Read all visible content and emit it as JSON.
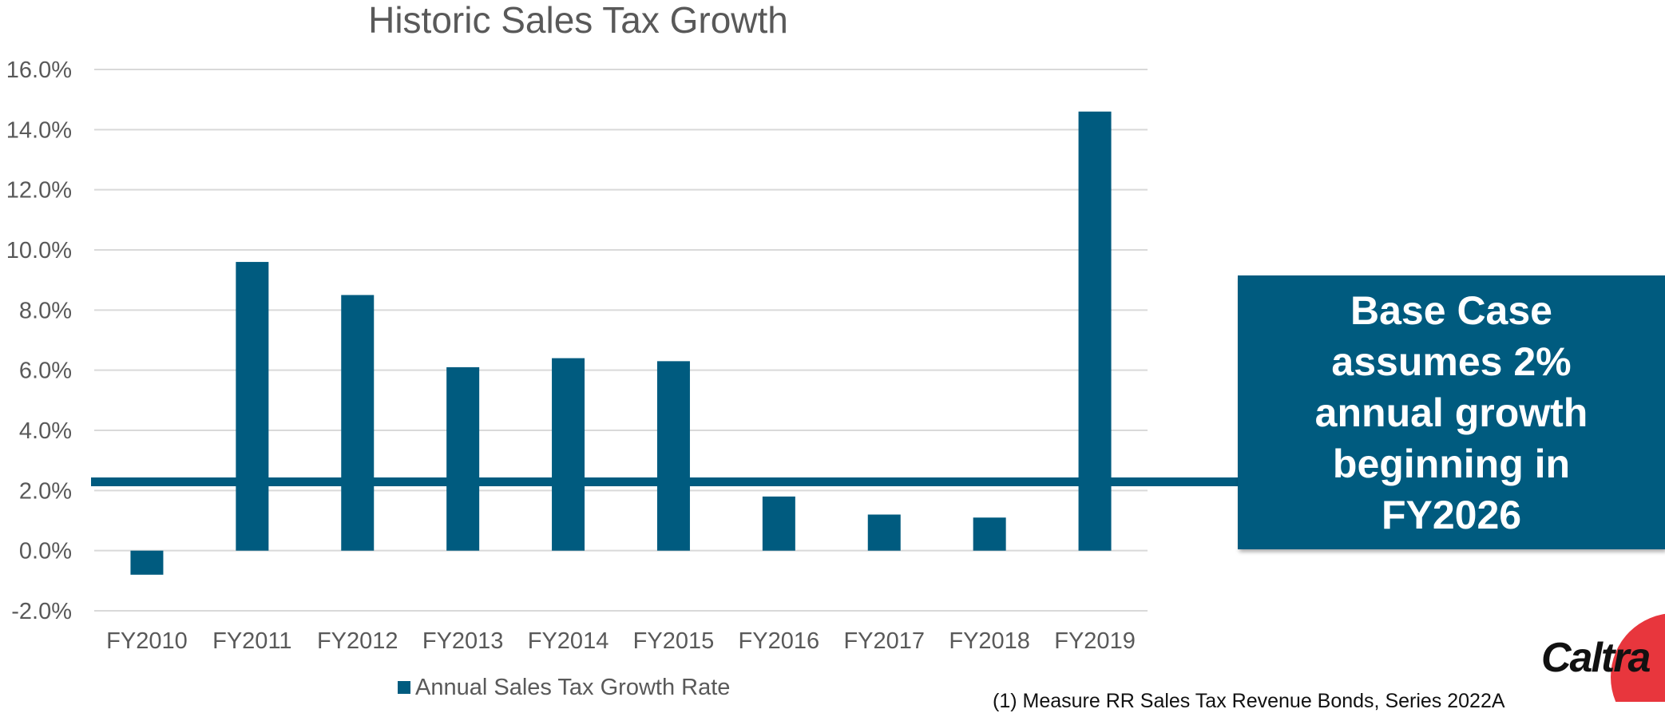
{
  "colors": {
    "bar": "#005b7f",
    "grid": "#d9d9d9",
    "text": "#595959",
    "callout_bg": "#005b7f",
    "logo_red": "#e8363d"
  },
  "chart_data": {
    "type": "bar",
    "title": "Historic Sales Tax Growth",
    "xlabel": "",
    "ylabel": "",
    "categories": [
      "FY2010",
      "FY2011",
      "FY2012",
      "FY2013",
      "FY2014",
      "FY2015",
      "FY2016",
      "FY2017",
      "FY2018",
      "FY2019"
    ],
    "series": [
      {
        "name": "Annual Sales Tax Growth Rate",
        "values": [
          -0.8,
          9.6,
          8.5,
          6.1,
          6.4,
          6.3,
          1.8,
          1.2,
          1.1,
          14.6
        ]
      }
    ],
    "ylim": [
      -2,
      16
    ],
    "yticks": [
      -2,
      0,
      2,
      4,
      6,
      8,
      10,
      12,
      14,
      16
    ],
    "ytick_labels": [
      "-2.0%",
      "0.0%",
      "2.0%",
      "4.0%",
      "6.0%",
      "8.0%",
      "10.0%",
      "12.0%",
      "14.0%",
      "16.0%"
    ],
    "grid": true,
    "legend_position": "bottom",
    "reference_line_value": 2.3
  },
  "callout": {
    "text": "Base Case assumes 2% annual growth beginning in FY2026"
  },
  "logo": {
    "text": "Caltra"
  },
  "footnote": "(1) Measure RR Sales Tax Revenue Bonds, Series 2022A"
}
